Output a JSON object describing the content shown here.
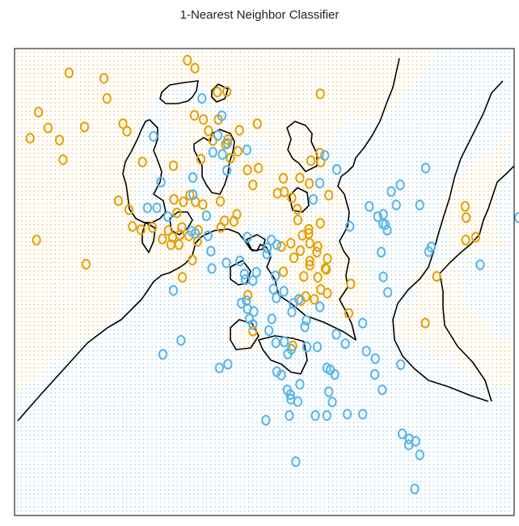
{
  "chart_data": {
    "type": "scatter",
    "title": "1-Nearest Neighbor Classifier",
    "xlabel": "",
    "ylabel": "",
    "xlim": [
      0,
      1
    ],
    "ylim": [
      0,
      1
    ],
    "grid": false,
    "legend": "none",
    "colors": {
      "orange": "#e69f00",
      "blue": "#56b4e9",
      "boundary": "#000000"
    },
    "series": [
      {
        "class": "orange",
        "points": [
          [
            0.346,
            0.975
          ],
          [
            0.361,
            0.958
          ],
          [
            0.109,
            0.948
          ],
          [
            0.179,
            0.936
          ],
          [
            0.425,
            0.908
          ],
          [
            0.406,
            0.907
          ],
          [
            0.612,
            0.903
          ],
          [
            0.185,
            0.893
          ],
          [
            0.048,
            0.864
          ],
          [
            0.36,
            0.857
          ],
          [
            0.378,
            0.848
          ],
          [
            0.408,
            0.848
          ],
          [
            0.217,
            0.839
          ],
          [
            0.486,
            0.839
          ],
          [
            0.14,
            0.832
          ],
          [
            0.067,
            0.83
          ],
          [
            0.225,
            0.823
          ],
          [
            0.388,
            0.824
          ],
          [
            0.45,
            0.825
          ],
          [
            0.427,
            0.805
          ],
          [
            0.09,
            0.804
          ],
          [
            0.031,
            0.808
          ],
          [
            0.397,
            0.803
          ],
          [
            0.422,
            0.795
          ],
          [
            0.447,
            0.78
          ],
          [
            0.611,
            0.776
          ],
          [
            0.373,
            0.763
          ],
          [
            0.256,
            0.757
          ],
          [
            0.097,
            0.762
          ],
          [
            0.593,
            0.76
          ],
          [
            0.613,
            0.757
          ],
          [
            0.432,
            0.765
          ],
          [
            0.318,
            0.749
          ],
          [
            0.466,
            0.74
          ],
          [
            0.488,
            0.744
          ],
          [
            0.538,
            0.722
          ],
          [
            0.571,
            0.723
          ],
          [
            0.59,
            0.711
          ],
          [
            0.477,
            0.708
          ],
          [
            0.54,
            0.693
          ],
          [
            0.351,
            0.686
          ],
          [
            0.319,
            0.677
          ],
          [
            0.338,
            0.672
          ],
          [
            0.555,
            0.68
          ],
          [
            0.362,
            0.672
          ],
          [
            0.377,
            0.666
          ],
          [
            0.412,
            0.673
          ],
          [
            0.526,
            0.69
          ],
          [
            0.629,
            0.686
          ],
          [
            0.208,
            0.674
          ],
          [
            0.566,
            0.656
          ],
          [
            0.229,
            0.655
          ],
          [
            0.325,
            0.648
          ],
          [
            0.445,
            0.645
          ],
          [
            0.902,
            0.662
          ],
          [
            0.567,
            0.633
          ],
          [
            0.904,
            0.638
          ],
          [
            0.42,
            0.631
          ],
          [
            0.413,
            0.617
          ],
          [
            0.439,
            0.63
          ],
          [
            0.612,
            0.626
          ],
          [
            0.236,
            0.619
          ],
          [
            0.589,
            0.613
          ],
          [
            0.253,
            0.612
          ],
          [
            0.331,
            0.601
          ],
          [
            0.335,
            0.617
          ],
          [
            0.276,
            0.617
          ],
          [
            0.308,
            0.61
          ],
          [
            0.589,
            0.604
          ],
          [
            0.349,
            0.599
          ],
          [
            0.368,
            0.611
          ],
          [
            0.576,
            0.6
          ],
          [
            0.296,
            0.592
          ],
          [
            0.316,
            0.596
          ],
          [
            0.313,
            0.58
          ],
          [
            0.329,
            0.58
          ],
          [
            0.044,
            0.59
          ],
          [
            0.366,
            0.587
          ],
          [
            0.553,
            0.583
          ],
          [
            0.591,
            0.583
          ],
          [
            0.903,
            0.59
          ],
          [
            0.923,
            0.596
          ],
          [
            0.534,
            0.576
          ],
          [
            0.607,
            0.576
          ],
          [
            0.572,
            0.567
          ],
          [
            0.605,
            0.564
          ],
          [
            0.559,
            0.552
          ],
          [
            0.626,
            0.55
          ],
          [
            0.356,
            0.547
          ],
          [
            0.591,
            0.545
          ],
          [
            0.624,
            0.527
          ],
          [
            0.143,
            0.538
          ],
          [
            0.336,
            0.51
          ],
          [
            0.579,
            0.512
          ],
          [
            0.845,
            0.512
          ],
          [
            0.538,
            0.522
          ],
          [
            0.591,
            0.536
          ],
          [
            0.622,
            0.529
          ],
          [
            0.607,
            0.51
          ],
          [
            0.673,
            0.496
          ],
          [
            0.467,
            0.472
          ],
          [
            0.626,
            0.476
          ],
          [
            0.613,
            0.484
          ],
          [
            0.6,
            0.463
          ],
          [
            0.583,
            0.469
          ],
          [
            0.573,
            0.46
          ],
          [
            0.669,
            0.433
          ],
          [
            0.822,
            0.412
          ],
          [
            0.477,
            0.395
          ],
          [
            0.557,
            0.363
          ]
        ]
      },
      {
        "class": "blue",
        "points": [
          [
            0.375,
            0.893
          ],
          [
            0.415,
            0.856
          ],
          [
            0.278,
            0.812
          ],
          [
            0.407,
            0.814
          ],
          [
            0.426,
            0.797
          ],
          [
            0.465,
            0.783
          ],
          [
            0.397,
            0.778
          ],
          [
            0.416,
            0.773
          ],
          [
            0.621,
            0.771
          ],
          [
            0.645,
            0.741
          ],
          [
            0.823,
            0.744
          ],
          [
            0.425,
            0.739
          ],
          [
            0.357,
            0.724
          ],
          [
            0.293,
            0.714
          ],
          [
            0.611,
            0.712
          ],
          [
            0.772,
            0.708
          ],
          [
            0.357,
            0.687
          ],
          [
            0.598,
            0.677
          ],
          [
            0.754,
            0.694
          ],
          [
            0.811,
            0.665
          ],
          [
            0.71,
            0.662
          ],
          [
            0.764,
            0.665
          ],
          [
            0.266,
            0.659
          ],
          [
            0.285,
            0.659
          ],
          [
            0.384,
            0.642
          ],
          [
            0.738,
            0.645
          ],
          [
            0.307,
            0.64
          ],
          [
            1.009,
            0.638
          ],
          [
            0.727,
            0.64
          ],
          [
            0.742,
            0.623
          ],
          [
            0.671,
            0.619
          ],
          [
            0.354,
            0.609
          ],
          [
            0.362,
            0.604
          ],
          [
            0.466,
            0.596
          ],
          [
            0.737,
            0.625
          ],
          [
            0.387,
            0.599
          ],
          [
            0.514,
            0.59
          ],
          [
            0.525,
            0.58
          ],
          [
            0.746,
            0.611
          ],
          [
            0.506,
            0.573
          ],
          [
            0.393,
            0.566
          ],
          [
            0.834,
            0.575
          ],
          [
            0.505,
            0.56
          ],
          [
            0.424,
            0.541
          ],
          [
            0.734,
            0.564
          ],
          [
            0.451,
            0.545
          ],
          [
            0.395,
            0.529
          ],
          [
            0.829,
            0.565
          ],
          [
            0.932,
            0.537
          ],
          [
            0.484,
            0.521
          ],
          [
            0.46,
            0.517
          ],
          [
            0.462,
            0.505
          ],
          [
            0.477,
            0.503
          ],
          [
            0.522,
            0.513
          ],
          [
            0.518,
            0.485
          ],
          [
            0.524,
            0.466
          ],
          [
            0.318,
            0.482
          ],
          [
            0.539,
            0.48
          ],
          [
            0.738,
            0.511
          ],
          [
            0.747,
            0.478
          ],
          [
            0.454,
            0.455
          ],
          [
            0.464,
            0.46
          ],
          [
            0.569,
            0.463
          ],
          [
            0.466,
            0.443
          ],
          [
            0.479,
            0.437
          ],
          [
            0.558,
            0.454
          ],
          [
            0.47,
            0.421
          ],
          [
            0.611,
            0.447
          ],
          [
            0.477,
            0.409
          ],
          [
            0.515,
            0.421
          ],
          [
            0.555,
            0.436
          ],
          [
            0.333,
            0.375
          ],
          [
            0.644,
            0.388
          ],
          [
            0.584,
            0.418
          ],
          [
            0.509,
            0.396
          ],
          [
            0.581,
            0.404
          ],
          [
            0.697,
            0.412
          ],
          [
            0.662,
            0.368
          ],
          [
            0.54,
            0.372
          ],
          [
            0.523,
            0.37
          ],
          [
            0.585,
            0.361
          ],
          [
            0.297,
            0.345
          ],
          [
            0.547,
            0.346
          ],
          [
            0.554,
            0.356
          ],
          [
            0.704,
            0.352
          ],
          [
            0.606,
            0.361
          ],
          [
            0.427,
            0.324
          ],
          [
            0.722,
            0.336
          ],
          [
            0.41,
            0.316
          ],
          [
            0.625,
            0.316
          ],
          [
            0.773,
            0.323
          ],
          [
            0.632,
            0.312
          ],
          [
            0.534,
            0.301
          ],
          [
            0.721,
            0.302
          ],
          [
            0.525,
            0.308
          ],
          [
            0.641,
            0.302
          ],
          [
            0.546,
            0.269
          ],
          [
            0.571,
            0.281
          ],
          [
            0.552,
            0.259
          ],
          [
            0.629,
            0.265
          ],
          [
            0.553,
            0.249
          ],
          [
            0.567,
            0.244
          ],
          [
            0.636,
            0.243
          ],
          [
            0.736,
            0.269
          ],
          [
            0.55,
            0.214
          ],
          [
            0.602,
            0.214
          ],
          [
            0.625,
            0.214
          ],
          [
            0.666,
            0.217
          ],
          [
            0.697,
            0.217
          ],
          [
            0.503,
            0.204
          ],
          [
            0.776,
            0.175
          ],
          [
            0.79,
            0.164
          ],
          [
            0.803,
            0.159
          ],
          [
            0.789,
            0.151
          ],
          [
            0.811,
            0.13
          ],
          [
            0.563,
            0.115
          ],
          [
            0.801,
            0.057
          ]
        ]
      }
    ]
  }
}
